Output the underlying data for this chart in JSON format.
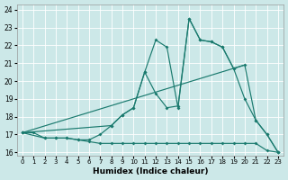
{
  "xlabel": "Humidex (Indice chaleur)",
  "bg_color": "#cce8e8",
  "grid_color": "#ffffff",
  "line_color": "#1a7a6e",
  "xlim": [
    -0.5,
    23.5
  ],
  "ylim": [
    15.8,
    24.3
  ],
  "xticks": [
    0,
    1,
    2,
    3,
    4,
    5,
    6,
    7,
    8,
    9,
    10,
    11,
    12,
    13,
    14,
    15,
    16,
    17,
    18,
    19,
    20,
    21,
    22,
    23
  ],
  "yticks": [
    16,
    17,
    18,
    19,
    20,
    21,
    22,
    23,
    24
  ],
  "line1_x": [
    0,
    1,
    2,
    3,
    4,
    5,
    6,
    7,
    8,
    9,
    10,
    11,
    12,
    13,
    14,
    15,
    16,
    17,
    18,
    19,
    20,
    21,
    22,
    23
  ],
  "line1_y": [
    17.1,
    17.1,
    16.8,
    16.8,
    16.8,
    16.7,
    16.6,
    16.5,
    16.5,
    16.5,
    16.5,
    16.5,
    16.5,
    16.5,
    16.5,
    16.5,
    16.5,
    16.5,
    16.5,
    16.5,
    16.5,
    16.5,
    16.1,
    16.0
  ],
  "line2_x": [
    0,
    2,
    3,
    4,
    5,
    6,
    7,
    8,
    9,
    10,
    11,
    12,
    13,
    14,
    15,
    16,
    17,
    18,
    19,
    20,
    21,
    22,
    23
  ],
  "line2_y": [
    17.1,
    16.8,
    16.8,
    16.8,
    16.7,
    16.7,
    17.0,
    17.5,
    18.1,
    18.5,
    20.5,
    22.3,
    21.9,
    18.5,
    23.5,
    22.3,
    22.2,
    21.9,
    20.7,
    19.0,
    17.8,
    17.0,
    16.0
  ],
  "line3_x": [
    0,
    8,
    9,
    10,
    11,
    12,
    13,
    14,
    15,
    16,
    17,
    18,
    19,
    20,
    21,
    22,
    23
  ],
  "line3_y": [
    17.1,
    17.5,
    18.1,
    18.5,
    20.5,
    19.3,
    18.5,
    18.6,
    23.5,
    22.3,
    22.2,
    21.9,
    20.7,
    20.9,
    17.8,
    17.0,
    16.0
  ],
  "line4_x": [
    0,
    20
  ],
  "line4_y": [
    17.1,
    20.9
  ]
}
